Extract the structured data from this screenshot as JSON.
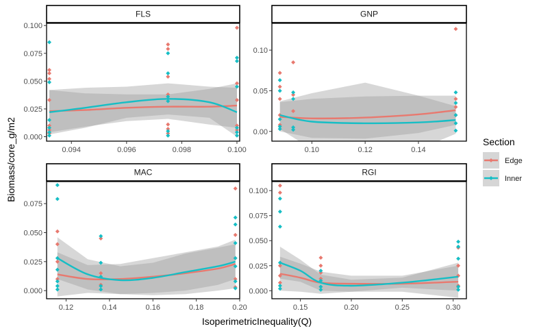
{
  "chart_data": {
    "type": "scatter",
    "xlabel": "IsoperimetricInequality(Q)",
    "ylabel": "Biomass/core_g/m2",
    "legend": {
      "title": "Section",
      "placement": "right",
      "entries": [
        {
          "name": "Edge",
          "color": "#E8796F"
        },
        {
          "name": "Inner",
          "color": "#16BEC5"
        }
      ]
    },
    "colors": {
      "edge": "#E8796F",
      "inner": "#16BEC5",
      "band_light": "#D6D6D6",
      "band_dark": "#BEBEBE"
    },
    "panels": [
      {
        "id": "FLS",
        "title": "FLS",
        "xlim": [
          0.0931,
          0.1001
        ],
        "ylim": [
          -0.004,
          0.102
        ],
        "xticks": [
          0.094,
          0.096,
          0.098,
          0.1
        ],
        "xtick_labels": [
          "0.094",
          "0.096",
          "0.098",
          "0.100"
        ],
        "yticks": [
          0,
          0.025,
          0.05,
          0.075,
          0.1
        ],
        "ytick_labels": [
          "0.000",
          "0.025",
          "0.050",
          "0.075",
          "0.100"
        ],
        "points": {
          "edge": [
            [
              0.0932,
              0.06
            ],
            [
              0.0932,
              0.057
            ],
            [
              0.0932,
              0.052
            ],
            [
              0.0932,
              0.033
            ],
            [
              0.0932,
              0.01
            ],
            [
              0.0932,
              0.006
            ],
            [
              0.0932,
              0.003
            ],
            [
              0.0975,
              0.083
            ],
            [
              0.0975,
              0.079
            ],
            [
              0.0975,
              0.054
            ],
            [
              0.0975,
              0.038
            ],
            [
              0.0975,
              0.011
            ],
            [
              0.0975,
              0.007
            ],
            [
              0.0975,
              0.003
            ],
            [
              0.1,
              0.098
            ],
            [
              0.1,
              0.048
            ],
            [
              0.1,
              0.033
            ],
            [
              0.1,
              0.01
            ],
            [
              0.1,
              0.006
            ]
          ],
          "inner": [
            [
              0.0932,
              0.085
            ],
            [
              0.0932,
              0.049
            ],
            [
              0.0932,
              0.015
            ],
            [
              0.0932,
              0.008
            ],
            [
              0.0932,
              0.004
            ],
            [
              0.0932,
              0.001
            ],
            [
              0.0975,
              0.075
            ],
            [
              0.0975,
              0.057
            ],
            [
              0.0975,
              0.036
            ],
            [
              0.0975,
              0.032
            ],
            [
              0.0975,
              0.005
            ],
            [
              0.0975,
              0.001
            ],
            [
              0.1,
              0.071
            ],
            [
              0.1,
              0.068
            ],
            [
              0.1,
              0.045
            ],
            [
              0.1,
              0.008
            ],
            [
              0.1,
              0.004
            ],
            [
              0.1,
              0.001
            ]
          ]
        },
        "fits": {
          "edge": {
            "x": [
              0.0932,
              0.0945,
              0.096,
              0.0975,
              0.099,
              0.1
            ],
            "y": [
              0.023,
              0.024,
              0.026,
              0.027,
              0.027,
              0.028
            ]
          },
          "inner": {
            "x": [
              0.0932,
              0.0945,
              0.096,
              0.0975,
              0.099,
              0.1
            ],
            "y": [
              0.022,
              0.026,
              0.031,
              0.034,
              0.031,
              0.022
            ]
          }
        },
        "bands": {
          "edge": {
            "lower": [
              0.004,
              0.009,
              0.014,
              0.016,
              0.011,
              0.008
            ],
            "upper": [
              0.042,
              0.039,
              0.038,
              0.038,
              0.043,
              0.048
            ]
          },
          "inner": {
            "lower": [
              0.002,
              0.008,
              0.017,
              0.02,
              0.017,
              0.0
            ],
            "upper": [
              0.042,
              0.044,
              0.045,
              0.048,
              0.045,
              0.044
            ]
          }
        }
      },
      {
        "id": "GNP",
        "title": "GNP",
        "xlim": [
          0.085,
          0.158
        ],
        "ylim": [
          -0.012,
          0.133
        ],
        "xticks": [
          0.1,
          0.12,
          0.14
        ],
        "xtick_labels": [
          "0.10",
          "0.12",
          "0.14"
        ],
        "yticks": [
          0,
          0.05,
          0.1
        ],
        "ytick_labels": [
          "0.00",
          "0.05",
          "0.10"
        ],
        "points": {
          "edge": [
            [
              0.088,
              0.072
            ],
            [
              0.088,
              0.055
            ],
            [
              0.088,
              0.04
            ],
            [
              0.088,
              0.02
            ],
            [
              0.088,
              0.008
            ],
            [
              0.093,
              0.085
            ],
            [
              0.093,
              0.045
            ],
            [
              0.093,
              0.025
            ],
            [
              0.154,
              0.126
            ],
            [
              0.154,
              0.04
            ],
            [
              0.154,
              0.03
            ],
            [
              0.154,
              0.02
            ]
          ],
          "inner": [
            [
              0.088,
              0.063
            ],
            [
              0.088,
              0.05
            ],
            [
              0.088,
              0.015
            ],
            [
              0.088,
              0.006
            ],
            [
              0.088,
              0.003
            ],
            [
              0.093,
              0.048
            ],
            [
              0.093,
              0.04
            ],
            [
              0.093,
              0.005
            ],
            [
              0.093,
              0.002
            ],
            [
              0.154,
              0.048
            ],
            [
              0.154,
              0.035
            ],
            [
              0.154,
              0.02
            ],
            [
              0.154,
              0.01
            ],
            [
              0.154,
              0.001
            ]
          ]
        },
        "fits": {
          "edge": {
            "x": [
              0.088,
              0.1,
              0.12,
              0.14,
              0.154
            ],
            "y": [
              0.018,
              0.016,
              0.017,
              0.021,
              0.026
            ]
          },
          "inner": {
            "x": [
              0.088,
              0.1,
              0.12,
              0.14,
              0.154
            ],
            "y": [
              0.02,
              0.012,
              0.01,
              0.011,
              0.014
            ]
          }
        },
        "bands": {
          "edge": {
            "lower": [
              0.0,
              -0.008,
              -0.009,
              -0.002,
              0.008
            ],
            "upper": [
              0.036,
              0.04,
              0.043,
              0.044,
              0.044
            ]
          },
          "inner": {
            "lower": [
              0.003,
              -0.022,
              -0.04,
              -0.022,
              -0.003
            ],
            "upper": [
              0.037,
              0.047,
              0.06,
              0.044,
              0.031
            ]
          }
        }
      },
      {
        "id": "MAC",
        "title": "MAC",
        "xlim": [
          0.111,
          0.2
        ],
        "ylim": [
          -0.007,
          0.094
        ],
        "xticks": [
          0.12,
          0.14,
          0.16,
          0.18,
          0.2
        ],
        "xtick_labels": [
          "0.12",
          "0.14",
          "0.16",
          "0.18",
          "0.20"
        ],
        "yticks": [
          0,
          0.025,
          0.05,
          0.075
        ],
        "ytick_labels": [
          "0.000",
          "0.025",
          "0.050",
          "0.075"
        ],
        "points": {
          "edge": [
            [
              0.116,
              0.051
            ],
            [
              0.116,
              0.04
            ],
            [
              0.116,
              0.025
            ],
            [
              0.116,
              0.01
            ],
            [
              0.136,
              0.045
            ],
            [
              0.136,
              0.015
            ],
            [
              0.136,
              0.005
            ],
            [
              0.198,
              0.088
            ],
            [
              0.198,
              0.048
            ],
            [
              0.198,
              0.028
            ],
            [
              0.198,
              0.01
            ],
            [
              0.198,
              0.003
            ]
          ],
          "inner": [
            [
              0.116,
              0.091
            ],
            [
              0.116,
              0.079
            ],
            [
              0.116,
              0.028
            ],
            [
              0.116,
              0.018
            ],
            [
              0.116,
              0.008
            ],
            [
              0.116,
              0.004
            ],
            [
              0.116,
              0.001
            ],
            [
              0.136,
              0.047
            ],
            [
              0.136,
              0.024
            ],
            [
              0.136,
              0.012
            ],
            [
              0.136,
              0.004
            ],
            [
              0.136,
              0.001
            ],
            [
              0.198,
              0.063
            ],
            [
              0.198,
              0.057
            ],
            [
              0.198,
              0.041
            ],
            [
              0.198,
              0.028
            ],
            [
              0.198,
              0.021
            ],
            [
              0.198,
              0.008
            ],
            [
              0.198,
              0.002
            ]
          ]
        },
        "fits": {
          "edge": {
            "x": [
              0.116,
              0.13,
              0.145,
              0.16,
              0.175,
              0.19,
              0.198
            ],
            "y": [
              0.014,
              0.01,
              0.01,
              0.012,
              0.015,
              0.019,
              0.023
            ]
          },
          "inner": {
            "x": [
              0.116,
              0.13,
              0.145,
              0.16,
              0.175,
              0.19,
              0.198
            ],
            "y": [
              0.028,
              0.014,
              0.009,
              0.011,
              0.016,
              0.021,
              0.025
            ]
          }
        },
        "bands": {
          "edge": {
            "lower": [
              -0.005,
              -0.002,
              -0.003,
              -0.004,
              -0.003,
              0.0,
              0.002
            ],
            "upper": [
              0.033,
              0.022,
              0.023,
              0.028,
              0.033,
              0.038,
              0.044
            ]
          },
          "inner": {
            "lower": [
              0.01,
              0.001,
              -0.003,
              -0.002,
              0.0,
              0.005,
              0.01
            ],
            "upper": [
              0.046,
              0.027,
              0.021,
              0.024,
              0.032,
              0.037,
              0.04
            ]
          }
        }
      },
      {
        "id": "RGI",
        "title": "RGI",
        "xlim": [
          0.122,
          0.313
        ],
        "ylim": [
          -0.008,
          0.109
        ],
        "xticks": [
          0.15,
          0.2,
          0.25,
          0.3
        ],
        "xtick_labels": [
          "0.15",
          "0.20",
          "0.25",
          "0.30"
        ],
        "yticks": [
          0,
          0.025,
          0.05,
          0.075,
          0.1
        ],
        "ytick_labels": [
          "0.000",
          "0.025",
          "0.050",
          "0.075",
          "0.100"
        ],
        "points": {
          "edge": [
            [
              0.13,
              0.105
            ],
            [
              0.13,
              0.098
            ],
            [
              0.13,
              0.025
            ],
            [
              0.13,
              0.015
            ],
            [
              0.13,
              0.008
            ],
            [
              0.17,
              0.033
            ],
            [
              0.17,
              0.025
            ],
            [
              0.17,
              0.018
            ],
            [
              0.17,
              0.012
            ],
            [
              0.305,
              0.043
            ],
            [
              0.305,
              0.025
            ],
            [
              0.305,
              0.015
            ],
            [
              0.305,
              0.005
            ]
          ],
          "inner": [
            [
              0.13,
              0.092
            ],
            [
              0.13,
              0.079
            ],
            [
              0.13,
              0.064
            ],
            [
              0.13,
              0.028
            ],
            [
              0.13,
              0.005
            ],
            [
              0.13,
              0.002
            ],
            [
              0.17,
              0.02
            ],
            [
              0.17,
              0.01
            ],
            [
              0.17,
              0.004
            ],
            [
              0.17,
              0.001
            ],
            [
              0.305,
              0.049
            ],
            [
              0.305,
              0.044
            ],
            [
              0.305,
              0.032
            ],
            [
              0.305,
              0.004
            ],
            [
              0.305,
              0.001
            ]
          ]
        },
        "fits": {
          "edge": {
            "x": [
              0.13,
              0.15,
              0.17,
              0.2,
              0.25,
              0.305
            ],
            "y": [
              0.017,
              0.013,
              0.008,
              0.007,
              0.007,
              0.009
            ]
          },
          "inner": {
            "x": [
              0.13,
              0.15,
              0.17,
              0.2,
              0.25,
              0.305
            ],
            "y": [
              0.028,
              0.02,
              0.008,
              0.005,
              0.008,
              0.014
            ]
          }
        },
        "bands": {
          "edge": {
            "lower": [
              0.0,
              -0.001,
              -0.003,
              -0.001,
              -0.001,
              -0.007
            ],
            "upper": [
              0.034,
              0.027,
              0.019,
              0.015,
              0.015,
              0.025
            ]
          },
          "inner": {
            "lower": [
              0.012,
              0.009,
              0.0,
              -0.001,
              0.003,
              0.0
            ],
            "upper": [
              0.044,
              0.031,
              0.016,
              0.011,
              0.013,
              0.028
            ]
          }
        }
      }
    ]
  }
}
